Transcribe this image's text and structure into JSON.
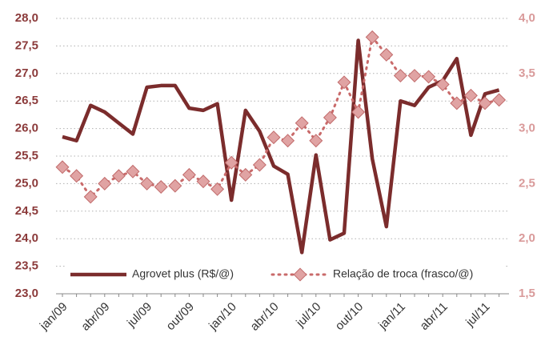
{
  "chart_data": {
    "type": "line",
    "categories": [
      "jan/09",
      null,
      null,
      "abr/09",
      null,
      null,
      "jul/09",
      null,
      null,
      "out/09",
      null,
      null,
      "jan/10",
      null,
      null,
      "abr/10",
      null,
      null,
      "jul/10",
      null,
      null,
      "out/10",
      null,
      null,
      "jan/11",
      null,
      null,
      "abr/11",
      null,
      null,
      "jul/11",
      null
    ],
    "series": [
      {
        "name": "Agrovet plus (R$/@)",
        "color": "#7b2c2c",
        "values": [
          25.85,
          25.78,
          26.42,
          26.3,
          26.1,
          25.9,
          26.75,
          26.78,
          26.78,
          26.37,
          26.33,
          26.45,
          24.7,
          26.33,
          25.95,
          25.32,
          25.17,
          23.75,
          25.52,
          23.98,
          24.1,
          27.6,
          25.45,
          24.22,
          26.5,
          26.42,
          26.75,
          26.87,
          27.27,
          25.88,
          26.63,
          26.7
        ]
      },
      {
        "name": "Relação de troca (frasco/@)",
        "color": "#e0a3a3",
        "axis": "y2",
        "values": [
          2.65,
          2.57,
          2.38,
          2.5,
          2.57,
          2.61,
          2.5,
          2.47,
          2.48,
          2.58,
          2.52,
          2.45,
          2.69,
          2.58,
          2.67,
          2.92,
          2.89,
          3.05,
          2.89,
          3.1,
          3.42,
          3.15,
          3.83,
          3.67,
          3.48,
          3.48,
          3.47,
          3.4,
          3.23,
          3.3,
          3.23,
          3.26
        ]
      }
    ],
    "ylim": [
      23,
      28
    ],
    "yticks": [
      {
        "value": 23,
        "label": "23,0"
      },
      {
        "value": 23.5,
        "label": "23,5"
      },
      {
        "value": 24,
        "label": "24,0"
      },
      {
        "value": 24.5,
        "label": "24,5"
      },
      {
        "value": 25,
        "label": "25,0"
      },
      {
        "value": 25.5,
        "label": "25,5"
      },
      {
        "value": 26,
        "label": "26,0"
      },
      {
        "value": 26.5,
        "label": "26,5"
      },
      {
        "value": 27,
        "label": "27,0"
      },
      {
        "value": 27.5,
        "label": "27,5"
      },
      {
        "value": 28,
        "label": "28,0"
      }
    ],
    "y2lim": [
      1.5,
      4
    ],
    "y2ticks": [
      {
        "value": 1.5,
        "label": "1,5"
      },
      {
        "value": 2,
        "label": "2,0"
      },
      {
        "value": 2.5,
        "label": "2,5"
      },
      {
        "value": 3,
        "label": "3,0"
      },
      {
        "value": 3.5,
        "label": "3,5"
      },
      {
        "value": 4,
        "label": "4,0"
      }
    ],
    "grid": true
  }
}
